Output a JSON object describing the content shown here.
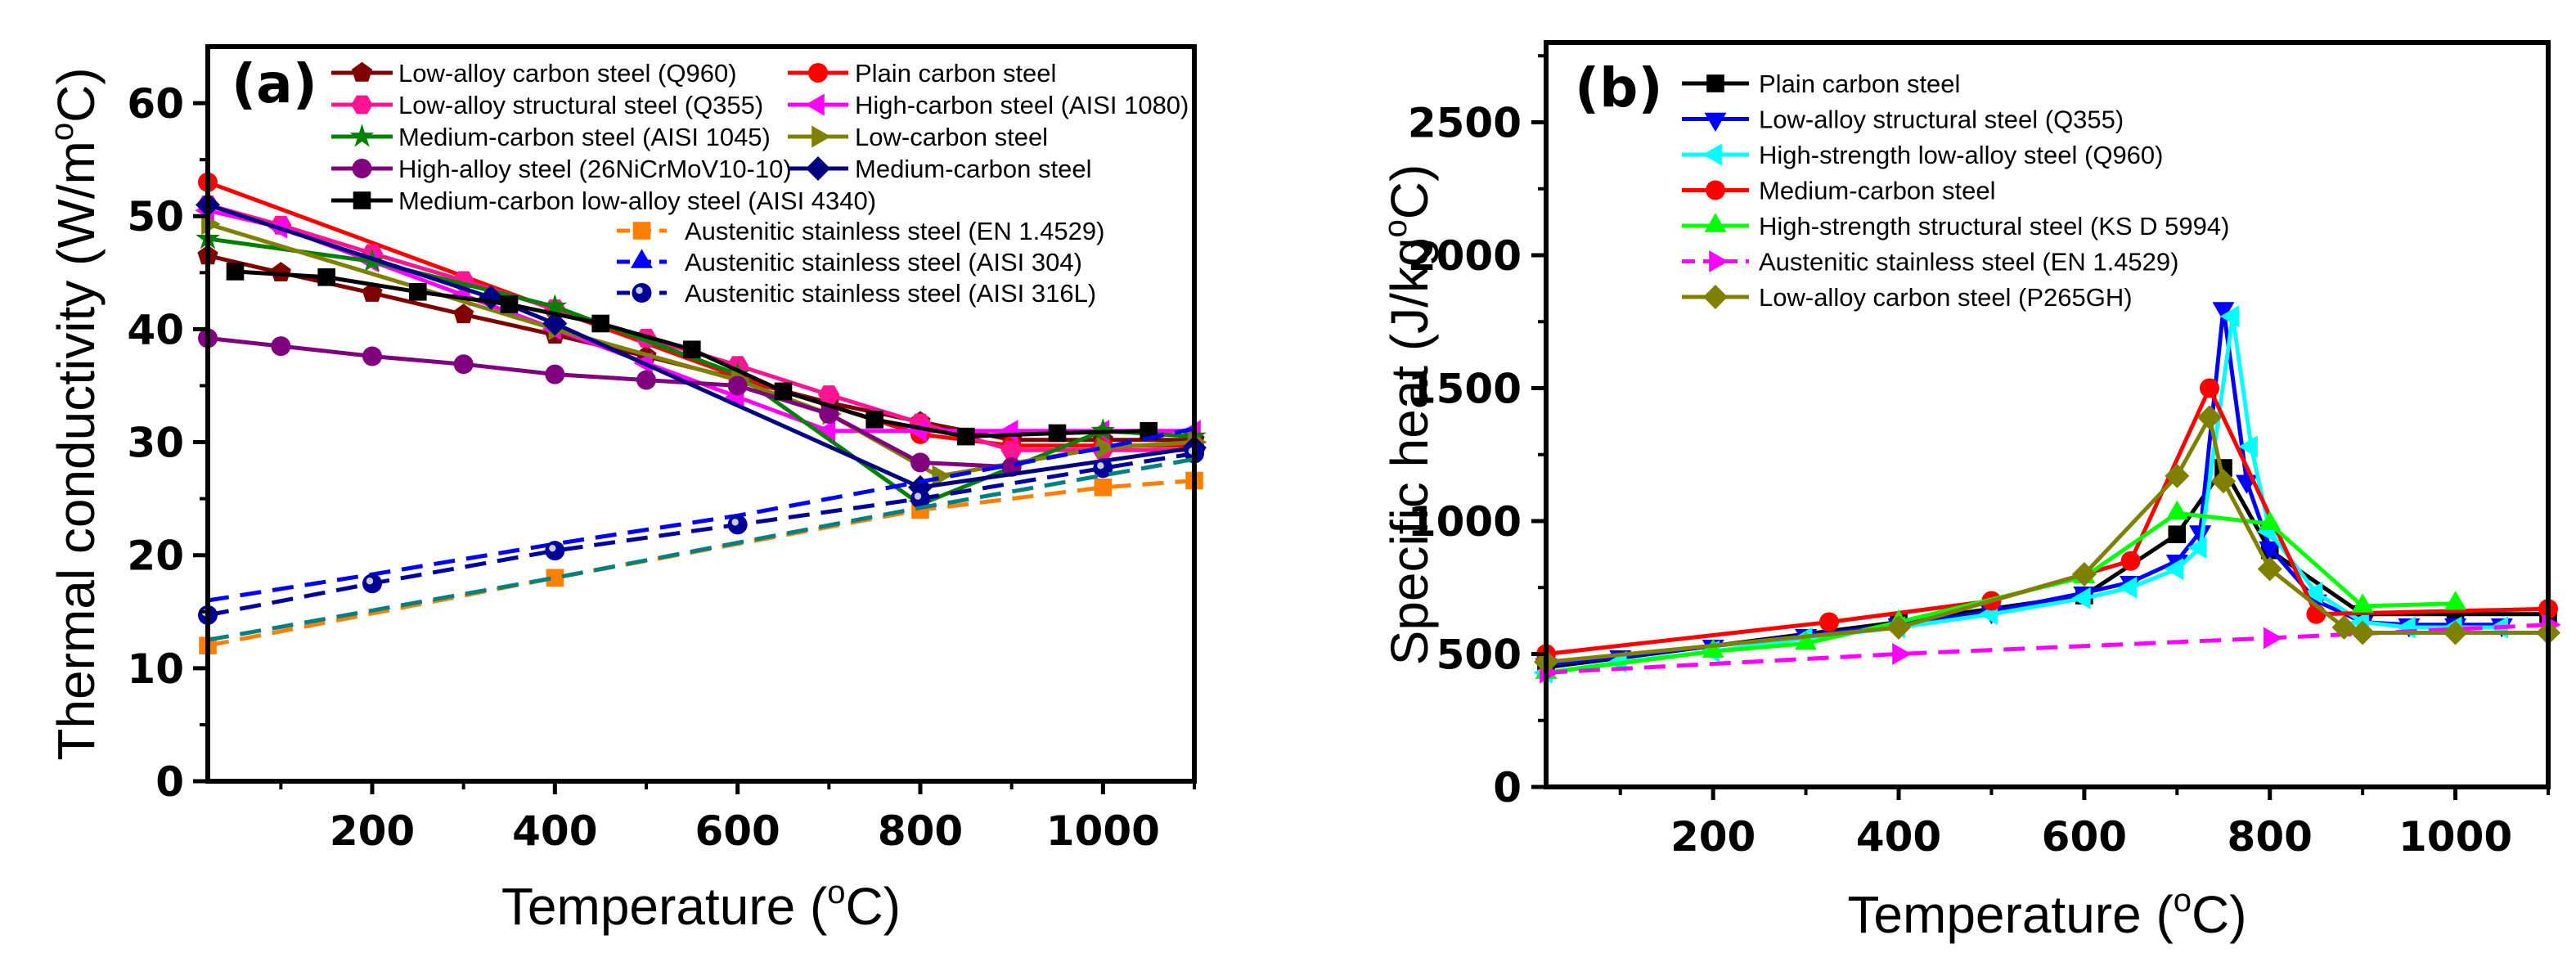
{
  "chart_data": [
    {
      "type": "line",
      "panel_label": "(a)",
      "xlabel": {
        "pre": "Temperature (",
        "sup": "o",
        "post": "C)"
      },
      "ylabel": {
        "pre": "Thermal conductivity (W/m",
        "sup": "o",
        "post": "C)"
      },
      "xlim": [
        20,
        1100
      ],
      "ylim": [
        0,
        65
      ],
      "xticks": [
        200,
        400,
        600,
        800,
        1000
      ],
      "xminor": [
        100,
        300,
        500,
        700,
        900,
        1100
      ],
      "yticks": [
        0,
        10,
        20,
        30,
        40,
        50,
        60
      ],
      "yminor": [
        5,
        15,
        25,
        35,
        45,
        55
      ],
      "grid": false,
      "legend": "top",
      "series": [
        {
          "name": "Low-alloy carbon steel (Q960)",
          "color": "#800000",
          "marker": "pentagon",
          "dash": false,
          "x": [
            20,
            100,
            200,
            300,
            400,
            500,
            600,
            700,
            800,
            900,
            1000,
            1100
          ],
          "y": [
            46.5,
            45,
            43.2,
            41.3,
            39.5,
            37.6,
            35.6,
            33.5,
            31.8,
            30.2,
            30.2,
            30.2
          ]
        },
        {
          "name": "Plain carbon steel",
          "color": "#ff0000",
          "marker": "circle",
          "dash": false,
          "x": [
            20,
            400,
            600,
            800,
            900,
            1000,
            1100
          ],
          "y": [
            53,
            41.7,
            35.8,
            30.7,
            29.7,
            29.7,
            29.7
          ]
        },
        {
          "name": "Low-alloy structural steel (Q355)",
          "color": "#ff1493",
          "marker": "hexagon",
          "dash": false,
          "x": [
            20,
            100,
            200,
            300,
            400,
            500,
            600,
            700,
            800,
            900,
            1000,
            1100
          ],
          "y": [
            51,
            49.2,
            46.7,
            44.3,
            41.8,
            39.2,
            36.8,
            34.2,
            31.7,
            29.3,
            29.3,
            29.3
          ]
        },
        {
          "name": "High-carbon steel (AISI 1080)",
          "color": "#ff00ff",
          "marker": "lefttri",
          "dash": false,
          "x": [
            20,
            100,
            200,
            300,
            400,
            500,
            600,
            700,
            800,
            900,
            1000,
            1100
          ],
          "y": [
            50.5,
            49,
            46,
            43,
            40,
            37,
            34,
            31,
            31,
            31,
            31,
            31
          ]
        },
        {
          "name": "Medium-carbon steel (AISI 1045)",
          "color": "#008000",
          "marker": "star",
          "dash": false,
          "x": [
            20,
            200,
            400,
            600,
            800,
            1000,
            1100
          ],
          "y": [
            48,
            46,
            42,
            36,
            24.5,
            31,
            30.5
          ]
        },
        {
          "name": "Low-carbon steel",
          "color": "#808000",
          "marker": "righttri",
          "dash": false,
          "x": [
            20,
            400,
            600,
            700,
            820,
            1000,
            1100
          ],
          "y": [
            49.3,
            40,
            35.5,
            32.5,
            27,
            29.5,
            30
          ]
        },
        {
          "name": "High-alloy steel (26NiCrMoV10-10)",
          "color": "#800080",
          "marker": "circle",
          "dash": false,
          "x": [
            20,
            100,
            200,
            300,
            400,
            500,
            600,
            700,
            800,
            900
          ],
          "y": [
            39.2,
            38.5,
            37.6,
            36.9,
            36,
            35.5,
            35,
            32.5,
            28.2,
            27.8
          ]
        },
        {
          "name": "Medium-carbon steel",
          "color": "#000080",
          "marker": "diamond",
          "dash": false,
          "x": [
            20,
            330,
            400,
            800,
            1100
          ],
          "y": [
            51,
            42.8,
            40.5,
            26,
            29.5
          ]
        },
        {
          "name": "Medium-carbon low-alloy steel (AISI 4340)",
          "color": "#000000",
          "marker": "square",
          "dash": false,
          "x": [
            50,
            150,
            250,
            350,
            450,
            550,
            650,
            750,
            850,
            950,
            1050
          ],
          "y": [
            45.1,
            44.6,
            43.3,
            42.2,
            40.5,
            38.2,
            34.5,
            32,
            30.5,
            30.8,
            31
          ]
        },
        {
          "name": "Austenitic stainless steel (EN 1.4529)",
          "color": "#ff8000",
          "marker": "square",
          "dash": true,
          "x": [
            20,
            400,
            800,
            1000,
            1100
          ],
          "y": [
            12,
            18,
            24,
            26,
            26.6
          ]
        },
        {
          "name": "Austenitic stainless steel (AISI 304)",
          "color": "#0000ff",
          "marker": "uptri",
          "dash": true,
          "x": [
            20,
            200,
            400,
            600,
            800,
            1000,
            1100
          ],
          "y": [
            16,
            18.3,
            21,
            23.5,
            26.5,
            29.5,
            31.2
          ]
        },
        {
          "name": "Austenitic stainless steel (AISI 316L)",
          "color": "#000099",
          "marker": "sphere",
          "dash": true,
          "x": [
            20,
            200,
            400,
            600,
            800,
            1000,
            1100
          ],
          "y": [
            14.7,
            17.5,
            20.4,
            22.7,
            25,
            27.7,
            29
          ]
        },
        {
          "name": "",
          "color": "#008080",
          "marker": "none",
          "dash": true,
          "x": [
            20,
            400,
            800,
            1100
          ],
          "y": [
            12.5,
            18,
            24.2,
            28.5
          ]
        }
      ]
    },
    {
      "type": "line",
      "panel_label": "(b)",
      "xlabel": {
        "pre": "Temperature (",
        "sup": "o",
        "post": "C)"
      },
      "ylabel": {
        "pre": "Specific heat (J/kg",
        "sup": "o",
        "post": "C)"
      },
      "xlim": [
        20,
        1100
      ],
      "ylim": [
        0,
        2800
      ],
      "xticks": [
        200,
        400,
        600,
        800,
        1000
      ],
      "xminor": [
        100,
        300,
        500,
        700,
        900,
        1100
      ],
      "yticks": [
        0,
        500,
        1000,
        1500,
        2000,
        2500
      ],
      "yminor": [
        250,
        750,
        1250,
        1750,
        2250,
        2750
      ],
      "grid": false,
      "legend": "top-left",
      "series": [
        {
          "name": "Plain carbon steel",
          "color": "#000000",
          "marker": "square",
          "dash": false,
          "x": [
            20,
            400,
            600,
            700,
            750,
            800,
            900,
            1000,
            1100
          ],
          "y": [
            450,
            620,
            720,
            950,
            1200,
            890,
            650,
            650,
            650
          ]
        },
        {
          "name": "Low-alloy structural steel (Q355)",
          "color": "#0000ff",
          "marker": "downtri",
          "dash": false,
          "x": [
            20,
            100,
            200,
            300,
            400,
            500,
            600,
            650,
            700,
            725,
            750,
            775,
            800,
            850,
            900,
            950,
            1000,
            1050
          ],
          "y": [
            460,
            490,
            530,
            570,
            610,
            660,
            730,
            770,
            850,
            960,
            1800,
            1150,
            900,
            700,
            620,
            610,
            610,
            610
          ]
        },
        {
          "name": "High-strength low-alloy steel (Q960)",
          "color": "#00ffff",
          "marker": "lefttri",
          "dash": false,
          "x": [
            20,
            100,
            200,
            300,
            400,
            500,
            600,
            650,
            700,
            725,
            760,
            780,
            800,
            850,
            900,
            950,
            1000,
            1050
          ],
          "y": [
            430,
            470,
            510,
            560,
            600,
            650,
            710,
            750,
            820,
            900,
            1770,
            1280,
            960,
            730,
            620,
            600,
            600,
            600
          ]
        },
        {
          "name": "Medium-carbon steel",
          "color": "#ff0000",
          "marker": "circle",
          "dash": false,
          "x": [
            20,
            325,
            500,
            650,
            735,
            850,
            1100
          ],
          "y": [
            500,
            620,
            700,
            850,
            1500,
            650,
            670
          ]
        },
        {
          "name": "High-strength structural steel (KS D 5994)",
          "color": "#00ff00",
          "marker": "uptri",
          "dash": false,
          "x": [
            20,
            200,
            300,
            400,
            600,
            700,
            800,
            900,
            1000
          ],
          "y": [
            430,
            510,
            540,
            620,
            790,
            1030,
            990,
            680,
            690
          ]
        },
        {
          "name": "Austenitic stainless steel (EN 1.4529)",
          "color": "#ff00ff",
          "marker": "righttri",
          "dash": true,
          "x": [
            20,
            400,
            800,
            1100
          ],
          "y": [
            430,
            500,
            560,
            610
          ]
        },
        {
          "name": "Low-alloy carbon steel (P265GH)",
          "color": "#808000",
          "marker": "diamond",
          "dash": false,
          "x": [
            20,
            400,
            600,
            700,
            735,
            750,
            800,
            880,
            900,
            1000,
            1100
          ],
          "y": [
            470,
            600,
            800,
            1170,
            1390,
            1150,
            820,
            600,
            580,
            580,
            580
          ]
        }
      ]
    }
  ]
}
